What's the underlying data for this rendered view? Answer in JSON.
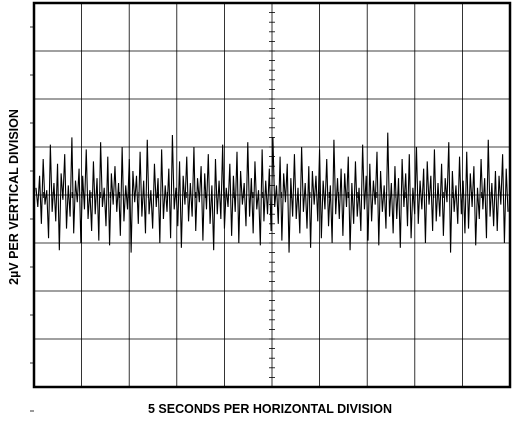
{
  "chart_data": {
    "type": "line",
    "title": "",
    "xlabel": "5 SECONDS PER HORIZONTAL DIVISION",
    "ylabel": "2µV PER VERTICAL DIVISION",
    "x_unit": "s",
    "y_unit": "µV",
    "x_per_division": 5,
    "y_per_division": 2,
    "divisions": {
      "horizontal": 10,
      "vertical": 8
    },
    "xlim": [
      0,
      50
    ],
    "ylim": [
      -8,
      8
    ],
    "grid": true,
    "series": [
      {
        "values": [
          0.3,
          -0.5,
          0.8,
          -1.2,
          1.5,
          -0.4,
          0.2,
          -1.8,
          2.1,
          -0.7,
          0.5,
          -1.1,
          1.3,
          -2.3,
          0.9,
          -0.2,
          1.7,
          -1.4,
          0.4,
          -0.9,
          2.4,
          -1.6,
          0.6,
          -0.3,
          1.1,
          -2.0,
          0.8,
          -0.6,
          1.9,
          -1.0,
          0.2,
          -1.5,
          1.4,
          -0.8,
          0.7,
          -1.9,
          2.2,
          -0.5,
          0.3,
          -1.3,
          1.6,
          -2.1,
          0.9,
          -0.4,
          1.2,
          -0.7,
          0.5,
          -1.7,
          2.0,
          -1.1,
          0.4,
          -0.6,
          1.5,
          -2.4,
          1.0,
          -0.3,
          0.8,
          -1.2,
          1.8,
          -0.9,
          0.6,
          -1.6,
          2.3,
          -0.8,
          0.2,
          -1.4,
          1.3,
          -0.5,
          0.7,
          -2.0,
          1.9,
          -1.0,
          0.4,
          -0.7,
          1.1,
          -1.8,
          2.5,
          -0.6,
          0.3,
          -1.3,
          1.4,
          -2.2,
          0.8,
          -0.4,
          1.6,
          -1.1,
          0.5,
          -0.9,
          2.0,
          -1.5,
          0.7,
          -0.3,
          1.2,
          -1.9,
          0.9,
          -0.6,
          1.7,
          -1.2,
          0.4,
          -2.3,
          1.5,
          -0.8,
          0.6,
          -1.0,
          2.1,
          -1.4,
          0.3,
          -0.5,
          1.3,
          -1.7,
          0.8,
          -0.7,
          1.8,
          -2.0,
          1.0,
          -0.4,
          0.5,
          -1.3,
          2.2,
          -0.9,
          0.7,
          -1.6,
          1.4,
          -0.6,
          0.2,
          -2.1,
          1.9,
          -1.1,
          0.6,
          -0.8,
          1.1,
          -1.5,
          2.4,
          -0.5,
          0.4,
          -1.2,
          1.6,
          -1.9,
          0.9,
          -0.3,
          1.3,
          -2.4,
          0.7,
          -0.9,
          1.7,
          -1.0,
          0.3,
          -1.6,
          2.0,
          -0.7,
          0.5,
          -1.4,
          1.2,
          -2.2,
          1.0,
          -0.4,
          0.8,
          -1.1,
          1.9,
          -1.8,
          0.6,
          -0.6,
          1.5,
          -1.3,
          0.4,
          -2.0,
          2.3,
          -0.8,
          0.7,
          -1.0,
          1.1,
          -1.7,
          0.9,
          -0.5,
          1.6,
          -2.3,
          0.5,
          -1.2,
          1.4,
          -0.9,
          0.3,
          -1.5,
          2.1,
          -0.6,
          0.8,
          -1.9,
          1.3,
          -1.1,
          0.6,
          -0.4,
          1.8,
          -2.1,
          1.0,
          -0.7,
          0.4,
          -1.4,
          2.6,
          -0.9,
          0.5,
          -1.6,
          1.2,
          -1.0,
          0.7,
          -2.2,
          1.5,
          -0.5,
          0.9,
          -1.3,
          1.7,
          -1.8,
          0.3,
          -0.8,
          2.0,
          -1.2,
          0.6,
          -0.6,
          1.1,
          -2.0,
          1.4,
          -0.4,
          0.8,
          -1.5,
          1.9,
          -1.1,
          0.5,
          -0.9,
          1.3,
          -1.7,
          0.7,
          -0.3,
          2.2,
          -2.4,
          1.0,
          -0.7,
          0.4,
          -1.2,
          1.6,
          -0.8,
          0.6,
          -1.6,
          1.8,
          -1.4,
          0.9,
          -0.5,
          1.2,
          -2.1,
          0.3,
          -1.0,
          1.5,
          -0.6,
          0.7,
          -1.8,
          2.3,
          -0.9,
          0.5,
          -1.3,
          1.0,
          -1.5,
          0.8,
          -0.4,
          1.7,
          -2.0,
          1.1,
          -0.7
        ]
      }
    ]
  }
}
